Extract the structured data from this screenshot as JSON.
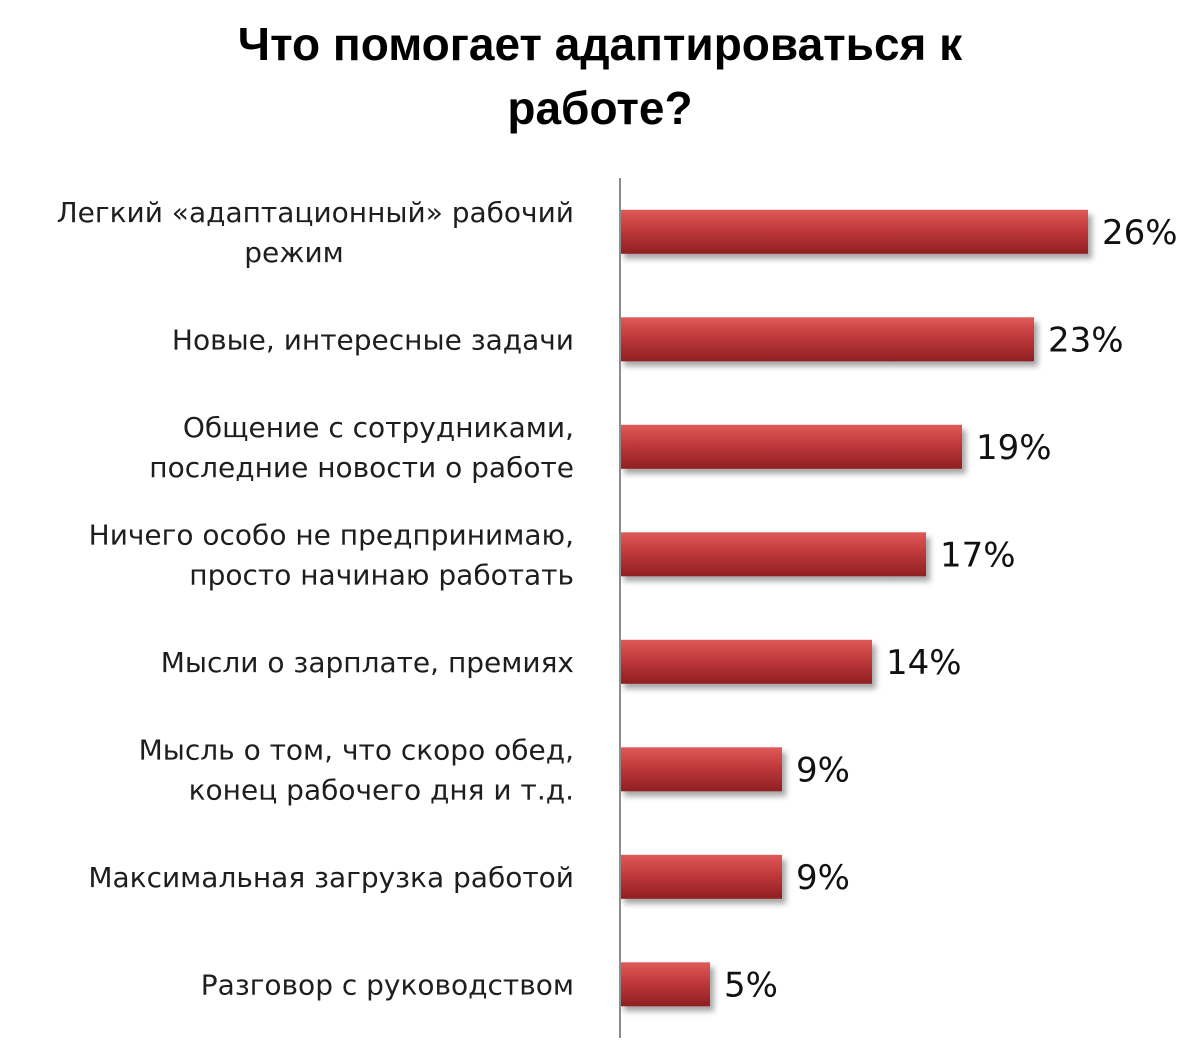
{
  "chart_data": {
    "type": "bar",
    "orientation": "horizontal",
    "title": "Что помогает адаптироваться к работе?",
    "title_lines": [
      "Что помогает адаптироваться к",
      "работе?"
    ],
    "categories": [
      [
        "Легкий «адаптационный» рабочий",
        "режим"
      ],
      [
        "Новые, интересные задачи"
      ],
      [
        "Общение с сотрудниками,",
        "последние новости о работе"
      ],
      [
        "Ничего особо не предпринимаю,",
        "просто начинаю работать"
      ],
      [
        "Мысли о зарплате, премиях"
      ],
      [
        "Мысль о том, что скоро обед,",
        "конец рабочего дня и т.д."
      ],
      [
        "Максимальная загрузка работой"
      ],
      [
        "Разговор с руководством"
      ]
    ],
    "values": [
      26,
      23,
      19,
      17,
      14,
      9,
      9,
      5
    ],
    "value_labels": [
      "26%",
      "23%",
      "19%",
      "17%",
      "14%",
      "9%",
      "9%",
      "5%"
    ],
    "xlim": [
      0,
      26
    ],
    "grid": false,
    "legend": "none",
    "bar_color": "#c0393b",
    "bar_color_light": "#e05a5a",
    "bar_color_dark": "#8f1f22"
  }
}
